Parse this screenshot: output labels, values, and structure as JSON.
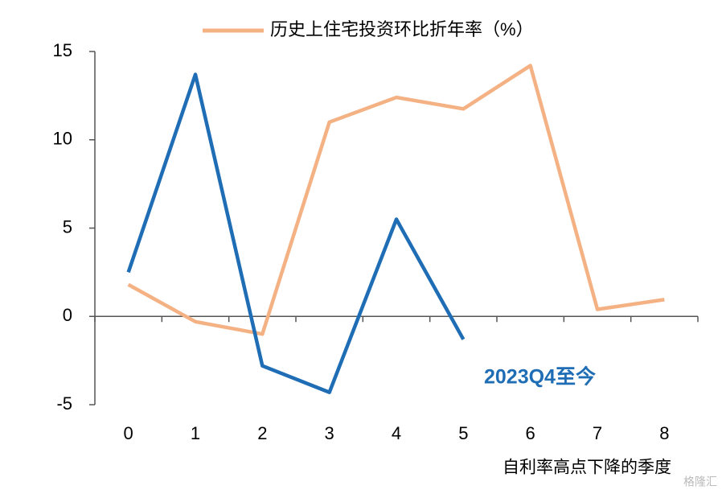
{
  "chart_data": {
    "type": "line",
    "legend_title": null,
    "categories": [
      "0",
      "1",
      "2",
      "3",
      "4",
      "5",
      "6",
      "7",
      "8"
    ],
    "series": [
      {
        "name": "历史上住宅投资环比折年率（%）",
        "color": "#f4b183",
        "values": [
          1.8,
          -0.3,
          -1.0,
          11.0,
          12.4,
          11.75,
          14.2,
          0.4,
          0.95
        ]
      },
      {
        "color": "#1f6db4",
        "values": [
          2.5,
          13.7,
          -2.8,
          -4.3,
          5.5,
          -1.3,
          null,
          null,
          null
        ]
      }
    ],
    "annotation": "2023Q4至今",
    "xlabel": "自利率高点下降的季度",
    "watermark": "格隆汇",
    "ylim": [
      -5,
      15
    ],
    "yticks": [
      15,
      10,
      5,
      0,
      -5
    ],
    "legend": "top"
  }
}
